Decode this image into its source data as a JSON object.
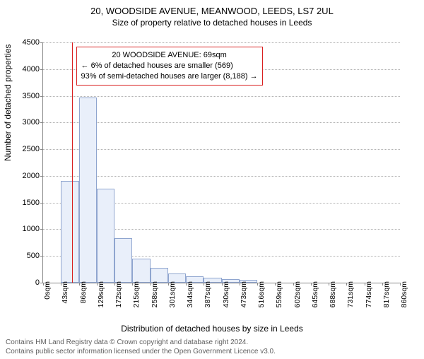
{
  "title": "20, WOODSIDE AVENUE, MEANWOOD, LEEDS, LS7 2UL",
  "subtitle": "Size of property relative to detached houses in Leeds",
  "ylabel": "Number of detached properties",
  "xlabel": "Distribution of detached houses by size in Leeds",
  "footer_line1": "Contains HM Land Registry data © Crown copyright and database right 2024.",
  "footer_line2": "Contains public sector information licensed under the Open Government Licence v3.0.",
  "chart": {
    "type": "histogram",
    "ylim": [
      0,
      4500
    ],
    "ytick_step": 500,
    "ymax": 4500,
    "x_bin_width": 43,
    "x_bins": 20,
    "xtick_labels": [
      "0sqm",
      "43sqm",
      "86sqm",
      "129sqm",
      "172sqm",
      "215sqm",
      "258sqm",
      "301sqm",
      "344sqm",
      "387sqm",
      "430sqm",
      "473sqm",
      "516sqm",
      "559sqm",
      "602sqm",
      "645sqm",
      "688sqm",
      "731sqm",
      "774sqm",
      "817sqm",
      "860sqm"
    ],
    "bar_values": [
      0,
      1900,
      3470,
      1760,
      840,
      450,
      280,
      170,
      120,
      90,
      60,
      50,
      0,
      0,
      0,
      0,
      0,
      0,
      0,
      0
    ],
    "bar_fill": "#e9effa",
    "bar_border": "#8fa5cf",
    "grid_color": "#b0b0b0",
    "axis_color": "#888888",
    "background": "#ffffff",
    "marker_value": 69,
    "marker_color": "#d92020",
    "annotation_lines": [
      "20 WOODSIDE AVENUE: 69sqm",
      "← 6% of detached houses are smaller (569)",
      "93% of semi-detached houses are larger (8,188) →"
    ],
    "title_fontsize": 13,
    "subtitle_fontsize": 12,
    "label_fontsize": 12,
    "tick_fontsize": 11
  }
}
